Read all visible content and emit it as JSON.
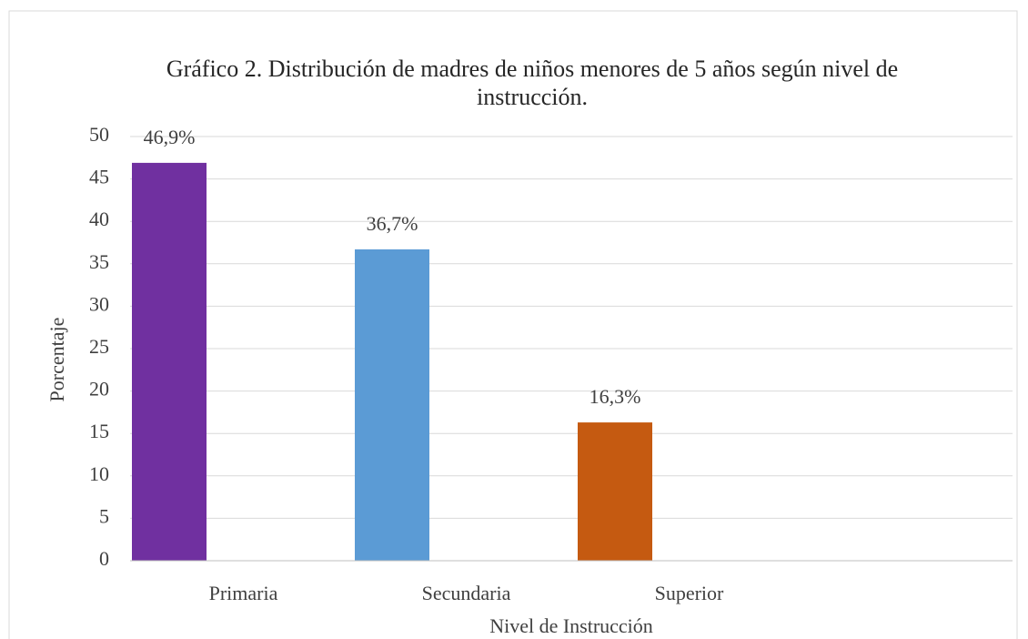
{
  "chart_data": {
    "type": "bar",
    "title": "Gráfico 2. Distribución de madres de niños menores de 5 años según nivel de instrucción.",
    "x_label": "Nivel de Instrucción",
    "y_label": "Porcentaje",
    "categories": [
      "Primaria",
      "Secundaria",
      "Superior"
    ],
    "values": [
      46.9,
      36.7,
      16.3
    ],
    "value_labels": [
      "46,9%",
      "36,7%",
      "16,3%"
    ],
    "colors": [
      "#7030a0",
      "#5b9bd5",
      "#c55a11"
    ],
    "ylim": [
      0,
      50
    ],
    "yticks": [
      0,
      5,
      10,
      15,
      20,
      25,
      30,
      35,
      40,
      45,
      50
    ],
    "grid": true
  }
}
